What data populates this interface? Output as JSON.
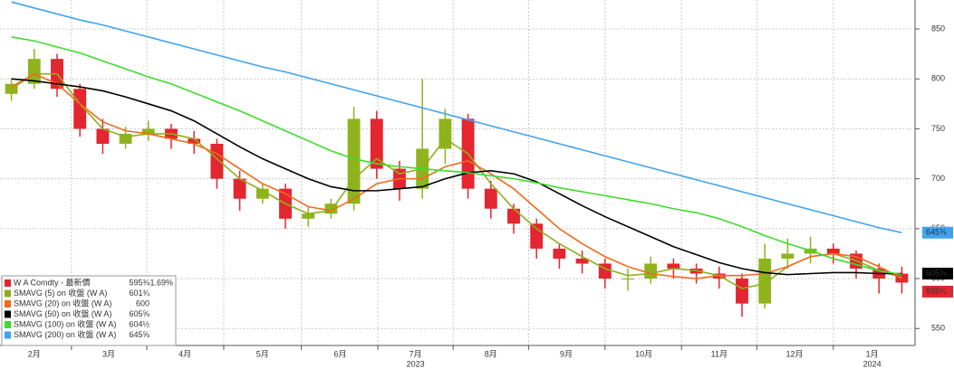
{
  "chart_data": {
    "type": "candlestick",
    "price": {
      "name": "W A Comdty - 最新價",
      "last_label": "595¾",
      "change_label": "-1.69%",
      "up_color": "#8fb31d",
      "down_color": "#e3262f",
      "open": [
        785,
        795,
        820,
        790,
        750,
        735,
        745,
        750,
        740,
        735,
        700,
        680,
        690,
        660,
        665,
        675,
        760,
        710,
        690,
        730,
        760,
        690,
        670,
        655,
        630,
        620,
        615,
        600,
        600,
        615,
        610,
        605,
        600,
        575,
        620,
        625,
        630,
        625,
        610,
        605
      ],
      "high": [
        800,
        830,
        825,
        795,
        760,
        752,
        758,
        755,
        748,
        740,
        708,
        695,
        695,
        672,
        680,
        772,
        768,
        718,
        800,
        770,
        765,
        698,
        675,
        660,
        635,
        628,
        620,
        610,
        622,
        620,
        615,
        612,
        605,
        635,
        640,
        642,
        635,
        628,
        615,
        612
      ],
      "low": [
        778,
        790,
        782,
        742,
        725,
        730,
        738,
        730,
        725,
        690,
        668,
        675,
        650,
        652,
        660,
        668,
        700,
        678,
        680,
        715,
        680,
        660,
        645,
        620,
        610,
        605,
        590,
        588,
        595,
        600,
        595,
        590,
        562,
        570,
        610,
        615,
        615,
        600,
        585,
        585
      ],
      "close": [
        795,
        820,
        790,
        750,
        735,
        745,
        750,
        740,
        735,
        700,
        680,
        690,
        660,
        665,
        675,
        760,
        710,
        690,
        730,
        760,
        690,
        670,
        655,
        630,
        620,
        615,
        600,
        600,
        615,
        610,
        605,
        600,
        575,
        620,
        625,
        630,
        625,
        610,
        600,
        596
      ]
    },
    "series": [
      {
        "name": "SMAVG (5)  on 收盤 (W A)",
        "color": "#8fae1b",
        "last_label": "601¾",
        "values": [
          790,
          805,
          805,
          775,
          750,
          742,
          745,
          745,
          740,
          720,
          700,
          688,
          675,
          665,
          668,
          700,
          720,
          705,
          710,
          740,
          725,
          695,
          670,
          650,
          635,
          622,
          610,
          603,
          605,
          610,
          608,
          603,
          590,
          595,
          612,
          622,
          625,
          618,
          608,
          601
        ]
      },
      {
        "name": "SMAVG (20)  on 收盤 (W A)",
        "color": "#f26a1b",
        "last_label": "600",
        "values": [
          792,
          805,
          795,
          775,
          757,
          748,
          745,
          740,
          735,
          725,
          710,
          695,
          685,
          672,
          668,
          680,
          695,
          700,
          700,
          712,
          718,
          705,
          690,
          670,
          650,
          635,
          622,
          612,
          605,
          602,
          600,
          603,
          603,
          605,
          612,
          622,
          625,
          622,
          612,
          600
        ]
      },
      {
        "name": "SMAVG (50)  on 收盤 (W A)",
        "color": "#000000",
        "last_label": "605⅝",
        "values": [
          800,
          798,
          795,
          792,
          788,
          782,
          775,
          768,
          758,
          745,
          732,
          720,
          710,
          700,
          692,
          688,
          688,
          690,
          692,
          700,
          706,
          708,
          705,
          697,
          685,
          673,
          662,
          652,
          642,
          632,
          624,
          616,
          610,
          606,
          604,
          605,
          606,
          606,
          605,
          605
        ]
      },
      {
        "name": "SMAVG (100)  on 收盤 (W A)",
        "color": "#3ddc2a",
        "last_label": "604½",
        "values": [
          842,
          838,
          832,
          826,
          818,
          810,
          802,
          795,
          786,
          777,
          768,
          758,
          748,
          738,
          728,
          720,
          715,
          712,
          710,
          708,
          706,
          703,
          700,
          696,
          691,
          687,
          683,
          679,
          675,
          670,
          666,
          660,
          652,
          643,
          635,
          628,
          620,
          614,
          608,
          604
        ]
      },
      {
        "name": "SMAVG (200)  on 收盤 (W A)",
        "color": "#3fa3f0",
        "last_label": "645⅝",
        "values": [
          877,
          871,
          865,
          859,
          854,
          848,
          842,
          836,
          830,
          824,
          818,
          812,
          807,
          801,
          795,
          789,
          783,
          777,
          771,
          765,
          759,
          753,
          747,
          741,
          735,
          729,
          723,
          717,
          711,
          705,
          699,
          693,
          687,
          681,
          675,
          669,
          663,
          657,
          651,
          646
        ]
      }
    ],
    "ylim": [
      533,
      879
    ],
    "yticks": [
      550,
      600,
      650,
      700,
      750,
      800,
      850
    ],
    "xlim": [
      -0.5,
      39.5
    ],
    "xticks": [
      {
        "value": 1.0,
        "label": "2月"
      },
      {
        "value": 4.26,
        "label": "3月"
      },
      {
        "value": 7.6,
        "label": "4月"
      },
      {
        "value": 11.0,
        "label": "5月"
      },
      {
        "value": 14.4,
        "label": "6月"
      },
      {
        "value": 17.7,
        "label": "7月"
      },
      {
        "value": 21.0,
        "label": "8月"
      },
      {
        "value": 24.3,
        "label": "9月"
      },
      {
        "value": 27.7,
        "label": "10月"
      },
      {
        "value": 31.0,
        "label": "11月"
      },
      {
        "value": 34.3,
        "label": "12月"
      },
      {
        "value": 37.7,
        "label": "1月"
      }
    ],
    "xticks2": [
      {
        "value": 17.7,
        "label": "2023"
      },
      {
        "value": 37.7,
        "label": "2024"
      }
    ],
    "grid": true
  }
}
